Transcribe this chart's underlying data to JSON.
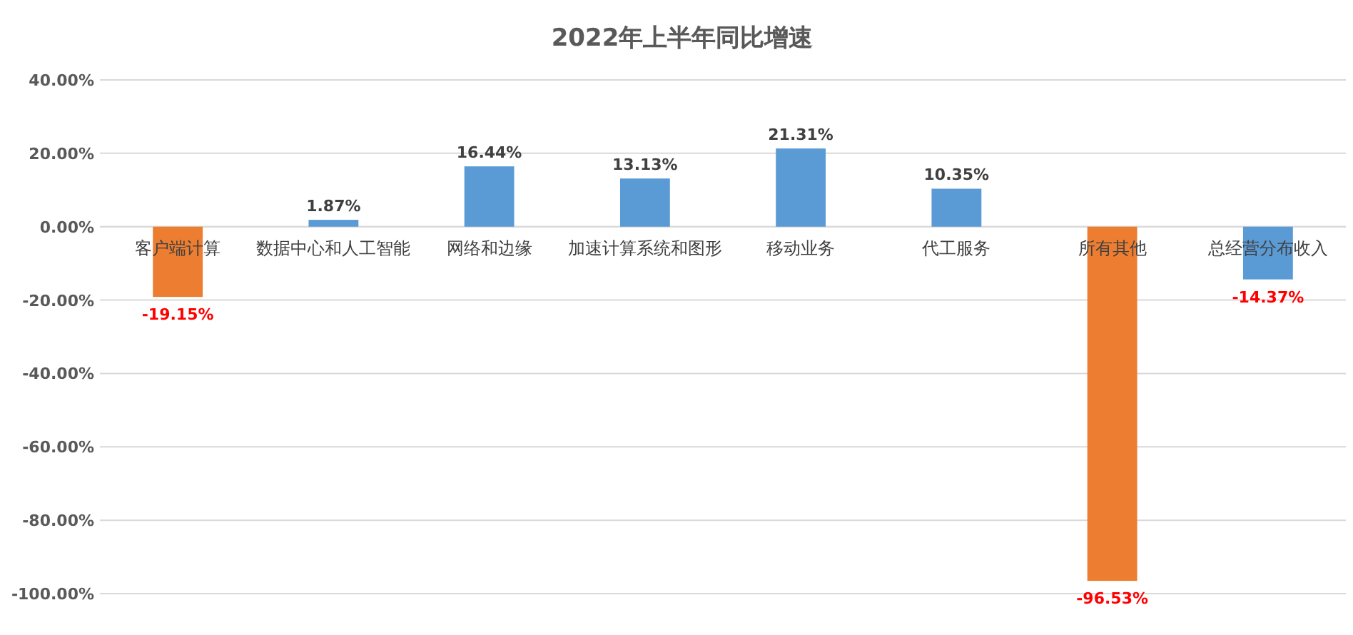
{
  "chart_data": {
    "type": "bar",
    "title": "2022年上半年同比增速",
    "categories": [
      "客户端计算",
      "数据中心和人工智能",
      "网络和边缘",
      "加速计算系统和图形",
      "移动业务",
      "代工服务",
      "所有其他",
      "总经营分布收入"
    ],
    "values": [
      -19.15,
      1.87,
      16.44,
      13.13,
      21.31,
      10.35,
      -96.53,
      -14.37
    ],
    "colors": [
      "#ed7d31",
      "#5b9bd5",
      "#5b9bd5",
      "#5b9bd5",
      "#5b9bd5",
      "#5b9bd5",
      "#ed7d31",
      "#5b9bd5"
    ],
    "value_labels": [
      "-19.15%",
      "1.87%",
      "16.44%",
      "13.13%",
      "21.31%",
      "10.35%",
      "-96.53%",
      "-14.37%"
    ],
    "ylim": [
      -100,
      40
    ],
    "yticks": [
      {
        "value": -100,
        "label": "-100.00%"
      },
      {
        "value": -80,
        "label": "-80.00%"
      },
      {
        "value": -60,
        "label": "-60.00%"
      },
      {
        "value": -40,
        "label": "-40.00%"
      },
      {
        "value": -20,
        "label": "-20.00%"
      },
      {
        "value": 0,
        "label": "0.00%"
      },
      {
        "value": 20,
        "label": "20.00%"
      },
      {
        "value": 40,
        "label": "40.00%"
      }
    ],
    "grid": "y"
  }
}
